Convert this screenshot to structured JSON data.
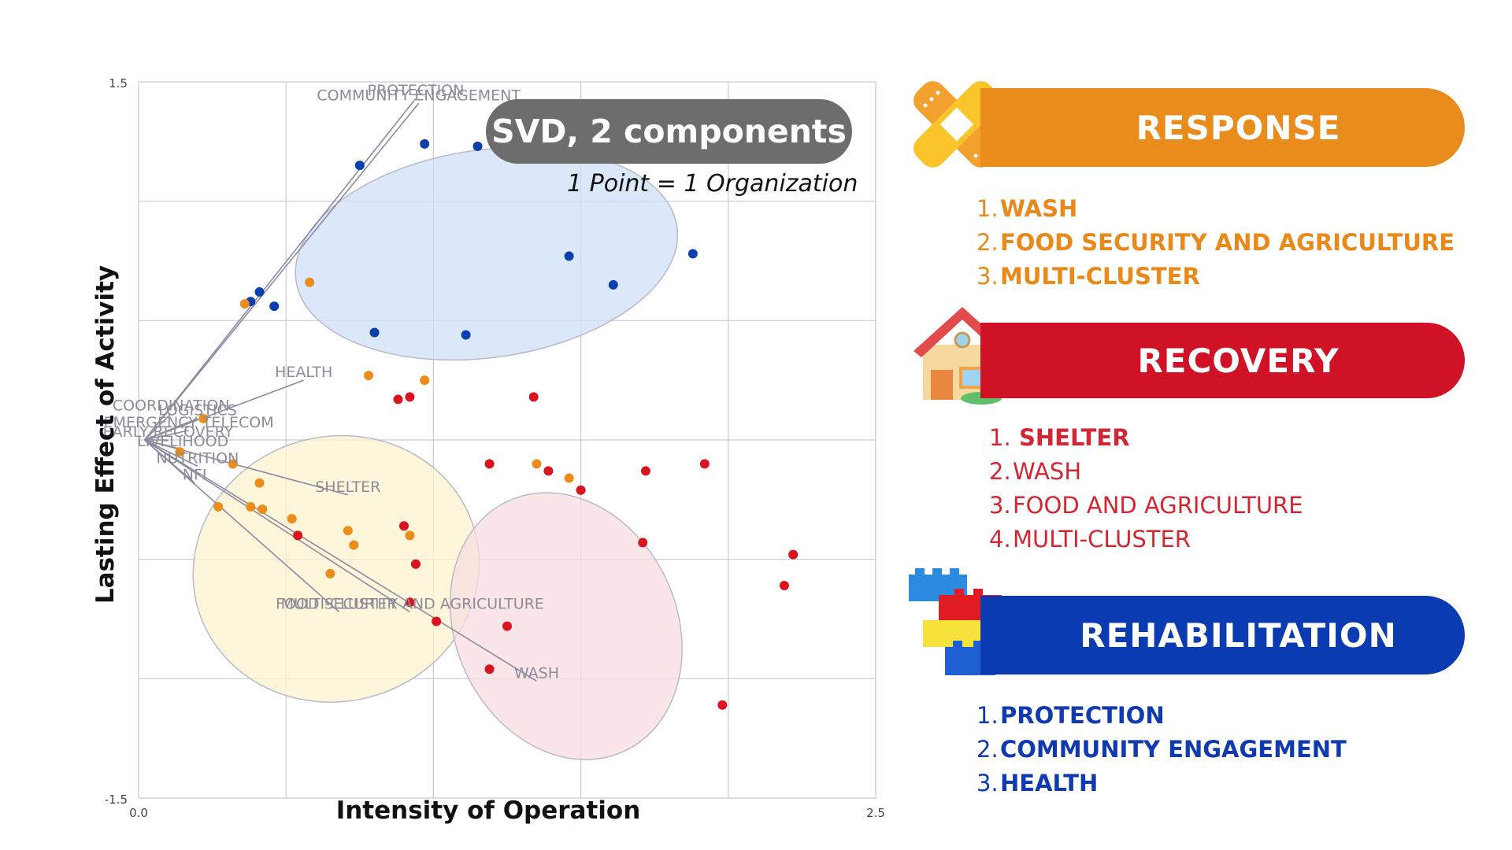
{
  "chart_data": {
    "type": "scatter",
    "xlabel": "Intensity of Operation",
    "ylabel": "Lasting Effect of Activity",
    "xlim": [
      0.0,
      2.5
    ],
    "ylim": [
      -1.5,
      1.5
    ],
    "x_tick_labels": [
      "0.0",
      "2.5"
    ],
    "y_tick_labels": [
      "1.5",
      "-1.5"
    ],
    "grid": true,
    "badge": "SVD, 2 components",
    "note": "1 Point = 1 Organization",
    "colors": {
      "response": "#ec8c1a",
      "recovery": "#d9141f",
      "rehabilitation": "#0a3fb0"
    },
    "clusters": [
      {
        "group": "rehabilitation",
        "cx": 1.18,
        "cy": 0.78,
        "rx": 0.87,
        "ry": 0.58,
        "angle": -8,
        "fill": "#cfe0f8"
      },
      {
        "group": "response",
        "cx": 0.67,
        "cy": -0.54,
        "rx": 0.65,
        "ry": 0.74,
        "angle": -15,
        "fill": "#fdf3cf"
      },
      {
        "group": "recovery",
        "cx": 1.45,
        "cy": -0.78,
        "rx": 0.5,
        "ry": 0.77,
        "angle": -25,
        "fill": "#f8dde1"
      }
    ],
    "points": [
      {
        "group": "rehabilitation",
        "x": 0.97,
        "y": 1.24
      },
      {
        "group": "rehabilitation",
        "x": 1.15,
        "y": 1.23
      },
      {
        "group": "rehabilitation",
        "x": 0.75,
        "y": 1.15
      },
      {
        "group": "rehabilitation",
        "x": 1.46,
        "y": 0.77
      },
      {
        "group": "rehabilitation",
        "x": 1.88,
        "y": 0.78
      },
      {
        "group": "rehabilitation",
        "x": 1.61,
        "y": 0.65
      },
      {
        "group": "rehabilitation",
        "x": 0.41,
        "y": 0.62
      },
      {
        "group": "rehabilitation",
        "x": 0.38,
        "y": 0.58
      },
      {
        "group": "rehabilitation",
        "x": 0.46,
        "y": 0.56
      },
      {
        "group": "rehabilitation",
        "x": 0.8,
        "y": 0.45
      },
      {
        "group": "rehabilitation",
        "x": 1.11,
        "y": 0.44
      },
      {
        "group": "response",
        "x": 0.58,
        "y": 0.66
      },
      {
        "group": "response",
        "x": 0.36,
        "y": 0.57
      },
      {
        "group": "response",
        "x": 0.78,
        "y": 0.27
      },
      {
        "group": "response",
        "x": 0.97,
        "y": 0.25
      },
      {
        "group": "response",
        "x": 0.22,
        "y": 0.09
      },
      {
        "group": "response",
        "x": 0.14,
        "y": -0.05
      },
      {
        "group": "response",
        "x": 0.32,
        "y": -0.1
      },
      {
        "group": "response",
        "x": 0.41,
        "y": -0.18
      },
      {
        "group": "response",
        "x": 0.27,
        "y": -0.28
      },
      {
        "group": "response",
        "x": 0.38,
        "y": -0.28
      },
      {
        "group": "response",
        "x": 0.42,
        "y": -0.29
      },
      {
        "group": "response",
        "x": 0.52,
        "y": -0.33
      },
      {
        "group": "response",
        "x": 0.71,
        "y": -0.38
      },
      {
        "group": "response",
        "x": 0.92,
        "y": -0.4
      },
      {
        "group": "response",
        "x": 0.73,
        "y": -0.44
      },
      {
        "group": "response",
        "x": 0.65,
        "y": -0.56
      },
      {
        "group": "response",
        "x": 1.35,
        "y": -0.1
      },
      {
        "group": "response",
        "x": 1.46,
        "y": -0.16
      },
      {
        "group": "recovery",
        "x": 0.88,
        "y": 0.17
      },
      {
        "group": "recovery",
        "x": 0.92,
        "y": 0.18
      },
      {
        "group": "recovery",
        "x": 1.34,
        "y": 0.18
      },
      {
        "group": "recovery",
        "x": 1.19,
        "y": -0.1
      },
      {
        "group": "recovery",
        "x": 1.39,
        "y": -0.13
      },
      {
        "group": "recovery",
        "x": 1.5,
        "y": -0.21
      },
      {
        "group": "recovery",
        "x": 1.92,
        "y": -0.1
      },
      {
        "group": "recovery",
        "x": 1.72,
        "y": -0.13
      },
      {
        "group": "recovery",
        "x": 0.54,
        "y": -0.4
      },
      {
        "group": "recovery",
        "x": 0.9,
        "y": -0.36
      },
      {
        "group": "recovery",
        "x": 1.71,
        "y": -0.43
      },
      {
        "group": "recovery",
        "x": 0.94,
        "y": -0.52
      },
      {
        "group": "recovery",
        "x": 2.22,
        "y": -0.48
      },
      {
        "group": "recovery",
        "x": 2.19,
        "y": -0.61
      },
      {
        "group": "recovery",
        "x": 0.92,
        "y": -0.68
      },
      {
        "group": "recovery",
        "x": 1.01,
        "y": -0.76
      },
      {
        "group": "recovery",
        "x": 1.25,
        "y": -0.78
      },
      {
        "group": "recovery",
        "x": 1.19,
        "y": -0.96
      },
      {
        "group": "recovery",
        "x": 1.98,
        "y": -1.11
      }
    ],
    "loadings": [
      {
        "label": "PROTECTION",
        "x": 0.94,
        "y": 1.43
      },
      {
        "label": "COMMUNITY ENGAGEMENT",
        "x": 0.95,
        "y": 1.41
      },
      {
        "label": "HEALTH",
        "x": 0.56,
        "y": 0.25
      },
      {
        "label": "COORDINATION",
        "x": 0.11,
        "y": 0.11
      },
      {
        "label": "LOGISTICS",
        "x": 0.2,
        "y": 0.09
      },
      {
        "label": "EMERGENCY TELECOM",
        "x": 0.17,
        "y": 0.04
      },
      {
        "label": "EARLY RECOVERY",
        "x": 0.1,
        "y": 0.0
      },
      {
        "label": "LIVELIHOOD",
        "x": 0.15,
        "y": -0.04
      },
      {
        "label": "NUTRITION",
        "x": 0.2,
        "y": -0.11
      },
      {
        "label": "NFI",
        "x": 0.19,
        "y": -0.18
      },
      {
        "label": "SHELTER",
        "x": 0.71,
        "y": -0.23
      },
      {
        "label": "MULTI-CLUSTER",
        "x": 0.68,
        "y": -0.72
      },
      {
        "label": "FOOD SECURITY AND AGRICULTURE",
        "x": 0.92,
        "y": -0.72
      },
      {
        "label": "WASH",
        "x": 1.35,
        "y": -1.01
      }
    ]
  },
  "panels": {
    "response": {
      "title": "RESPONSE",
      "items": [
        {
          "num": "1.",
          "label": "WASH"
        },
        {
          "num": "2.",
          "label": "FOOD SECURITY AND AGRICULTURE"
        },
        {
          "num": "3.",
          "label": "MULTI-CLUSTER"
        }
      ]
    },
    "recovery": {
      "title": "RECOVERY",
      "items": [
        {
          "num": "1.",
          "label": "SHELTER"
        },
        {
          "num": "2.",
          "label": "WASH"
        },
        {
          "num": "3.",
          "label": "FOOD AND AGRICULTURE"
        },
        {
          "num": "4.",
          "label": "MULTI-CLUSTER"
        }
      ]
    },
    "rehabilitation": {
      "title": "REHABILITATION",
      "items": [
        {
          "num": "1.",
          "label": "PROTECTION"
        },
        {
          "num": "2.",
          "label": "COMMUNITY ENGAGEMENT"
        },
        {
          "num": "3.",
          "label": "HEALTH"
        }
      ]
    }
  },
  "icons": {
    "response": "bandage-icon",
    "recovery": "house-icon",
    "rehabilitation": "lego-bricks-icon"
  }
}
